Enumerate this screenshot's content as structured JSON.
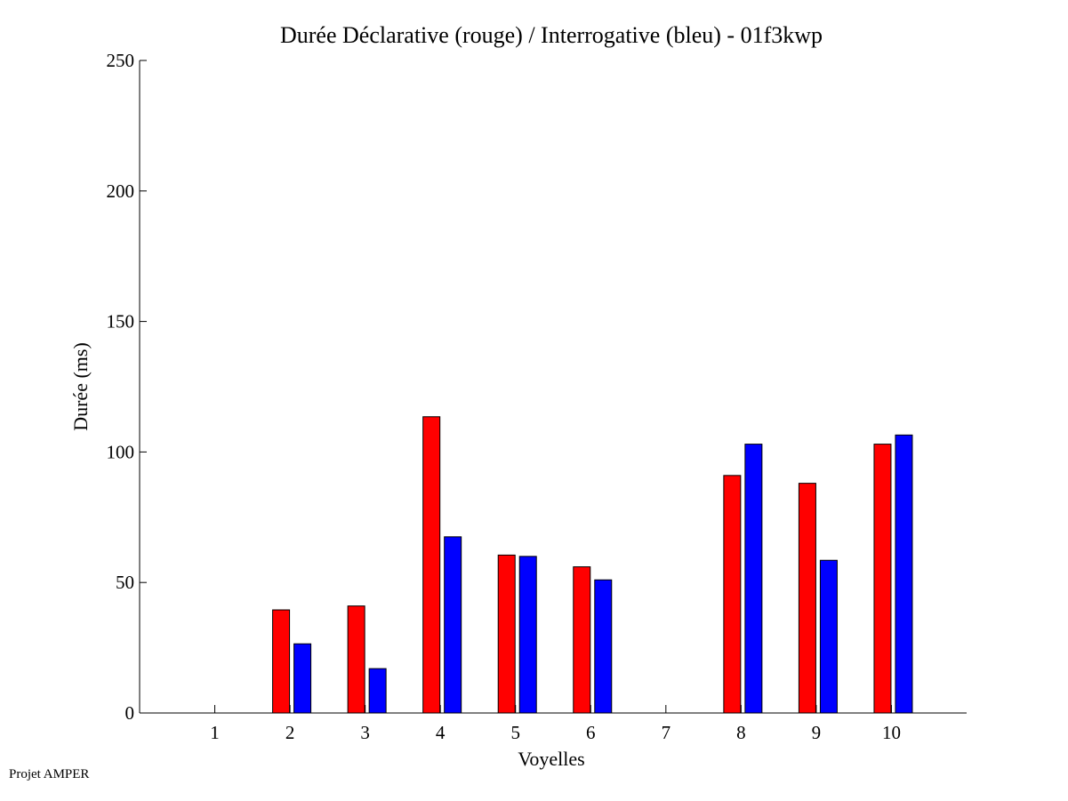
{
  "footer": {
    "text": "Projet AMPER"
  },
  "chart_data": {
    "type": "bar",
    "title": "Durée Déclarative (rouge) / Interrogative (bleu) - 01f3kwp",
    "xlabel": "Voyelles",
    "ylabel": "Durée (ms)",
    "categories": [
      "1",
      "2",
      "3",
      "4",
      "5",
      "6",
      "7",
      "8",
      "9",
      "10"
    ],
    "ylim": [
      0,
      250
    ],
    "yticks": [
      0,
      50,
      100,
      150,
      200,
      250
    ],
    "xlim": [
      0,
      11
    ],
    "grid": false,
    "series": [
      {
        "color": "#ff0000",
        "values": [
          0,
          39.5,
          41,
          113.5,
          60.5,
          56,
          0,
          91,
          88,
          103
        ]
      },
      {
        "color": "#0000ff",
        "values": [
          0,
          26.5,
          17,
          67.5,
          60,
          51,
          0,
          103,
          58.5,
          106.5
        ]
      }
    ]
  }
}
